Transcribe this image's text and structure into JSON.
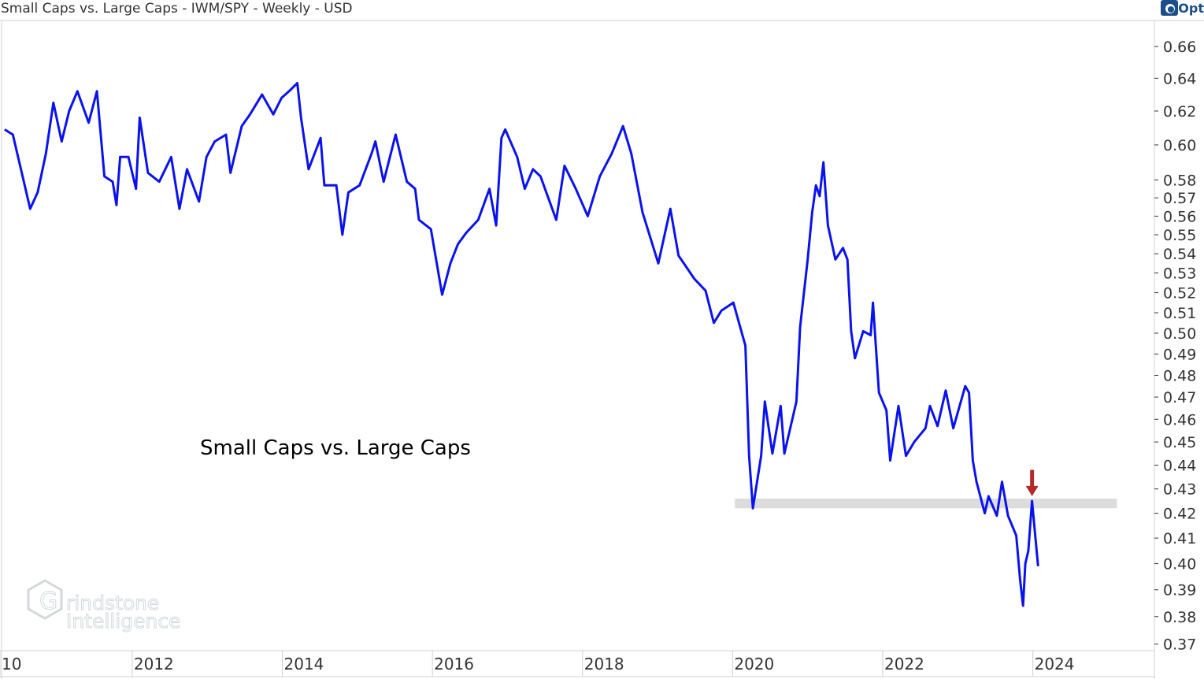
{
  "header": {
    "title": "Small Caps vs. Large Caps - IWM/SPY - Weekly - USD",
    "logo_text": "Opt"
  },
  "watermark": {
    "line1": "rindstone",
    "line2": "Intelligence"
  },
  "chart_data": {
    "type": "line",
    "title": "Small Caps vs. Large Caps - IWM/SPY - Weekly - USD",
    "annotation": "Small Caps vs. Large Caps",
    "y_scale": "log",
    "ylim": [
      0.37,
      0.675
    ],
    "xlim": [
      2010.27,
      2025.62
    ],
    "y_axis_position": "right",
    "grid": false,
    "line_color": "#0a12ee",
    "y_ticks": [
      "0.66",
      "0.64",
      "0.62",
      "0.60",
      "0.58",
      "0.57",
      "0.56",
      "0.55",
      "0.54",
      "0.53",
      "0.52",
      "0.51",
      "0.50",
      "0.49",
      "0.48",
      "0.47",
      "0.46",
      "0.45",
      "0.44",
      "0.43",
      "0.42",
      "0.41",
      "0.40",
      "0.39",
      "0.38",
      "0.37"
    ],
    "x_ticks": [
      {
        "label": "10",
        "year": 2010
      },
      {
        "label": "2012",
        "year": 2012
      },
      {
        "label": "2014",
        "year": 2014
      },
      {
        "label": "2016",
        "year": 2016
      },
      {
        "label": "2018",
        "year": 2018
      },
      {
        "label": "2020",
        "year": 2020
      },
      {
        "label": "2022",
        "year": 2022
      },
      {
        "label": "2024",
        "year": 2024
      }
    ],
    "support_band": {
      "from_year": 2020.03,
      "to_year": 2025.12,
      "low": 0.422,
      "high": 0.426,
      "color": "#dcdcdc"
    },
    "arrow": {
      "year": 2023.99,
      "from": 0.438,
      "to": 0.427,
      "color": "#b22a2a"
    },
    "series": [
      {
        "x": [
          2010.3,
          2010.41,
          2010.54,
          2010.64,
          2010.74,
          2010.85,
          2010.95,
          2011.06,
          2011.16,
          2011.27,
          2011.42,
          2011.53,
          2011.63,
          2011.74,
          2011.79,
          2011.84,
          2011.95,
          2012.05,
          2012.1,
          2012.21,
          2012.36,
          2012.52,
          2012.63,
          2012.73,
          2012.89,
          2012.99,
          2013.1,
          2013.25,
          2013.31,
          2013.46,
          2013.57,
          2013.73,
          2013.88,
          2013.99,
          2014.09,
          2014.2,
          2014.25,
          2014.35,
          2014.51,
          2014.56,
          2014.72,
          2014.8,
          2014.88,
          2015.03,
          2015.19,
          2015.24,
          2015.35,
          2015.51,
          2015.66,
          2015.77,
          2015.82,
          2015.98,
          2016.13,
          2016.24,
          2016.34,
          2016.45,
          2016.61,
          2016.76,
          2016.85,
          2016.92,
          2016.97,
          2017.13,
          2017.23,
          2017.34,
          2017.44,
          2017.65,
          2017.76,
          2017.91,
          2018.07,
          2018.23,
          2018.39,
          2018.54,
          2018.65,
          2018.8,
          2019.01,
          2019.17,
          2019.28,
          2019.49,
          2019.64,
          2019.75,
          2019.85,
          2020.01,
          2020.17,
          2020.22,
          2020.27,
          2020.38,
          2020.43,
          2020.53,
          2020.64,
          2020.69,
          2020.85,
          2020.9,
          2021.0,
          2021.06,
          2021.11,
          2021.16,
          2021.21,
          2021.27,
          2021.37,
          2021.47,
          2021.53,
          2021.58,
          2021.63,
          2021.74,
          2021.84,
          2021.87,
          2021.95,
          2022.05,
          2022.1,
          2022.21,
          2022.31,
          2022.42,
          2022.57,
          2022.63,
          2022.73,
          2022.84,
          2022.94,
          2023.1,
          2023.15,
          2023.2,
          2023.25,
          2023.36,
          2023.41,
          2023.52,
          2023.59,
          2023.67,
          2023.78,
          2023.83,
          2023.87,
          2023.9,
          2023.94,
          2023.99,
          2024.07
        ],
        "values": [
          0.609,
          0.606,
          0.582,
          0.564,
          0.573,
          0.595,
          0.625,
          0.602,
          0.62,
          0.632,
          0.613,
          0.632,
          0.582,
          0.579,
          0.566,
          0.593,
          0.593,
          0.575,
          0.616,
          0.584,
          0.579,
          0.593,
          0.564,
          0.586,
          0.568,
          0.593,
          0.602,
          0.606,
          0.584,
          0.611,
          0.618,
          0.63,
          0.618,
          0.628,
          0.632,
          0.637,
          0.616,
          0.586,
          0.604,
          0.577,
          0.577,
          0.55,
          0.573,
          0.577,
          0.595,
          0.602,
          0.579,
          0.606,
          0.579,
          0.575,
          0.558,
          0.553,
          0.519,
          0.535,
          0.545,
          0.551,
          0.558,
          0.575,
          0.555,
          0.604,
          0.609,
          0.593,
          0.575,
          0.586,
          0.582,
          0.558,
          0.588,
          0.575,
          0.56,
          0.582,
          0.595,
          0.611,
          0.595,
          0.562,
          0.535,
          0.564,
          0.539,
          0.527,
          0.521,
          0.505,
          0.511,
          0.515,
          0.494,
          0.444,
          0.422,
          0.444,
          0.468,
          0.445,
          0.466,
          0.445,
          0.468,
          0.503,
          0.537,
          0.562,
          0.577,
          0.571,
          0.59,
          0.555,
          0.537,
          0.543,
          0.537,
          0.501,
          0.488,
          0.501,
          0.499,
          0.515,
          0.472,
          0.464,
          0.442,
          0.466,
          0.444,
          0.45,
          0.456,
          0.466,
          0.457,
          0.473,
          0.456,
          0.475,
          0.472,
          0.442,
          0.433,
          0.42,
          0.427,
          0.419,
          0.433,
          0.419,
          0.411,
          0.394,
          0.384,
          0.4,
          0.405,
          0.425,
          0.399
        ]
      }
    ]
  }
}
